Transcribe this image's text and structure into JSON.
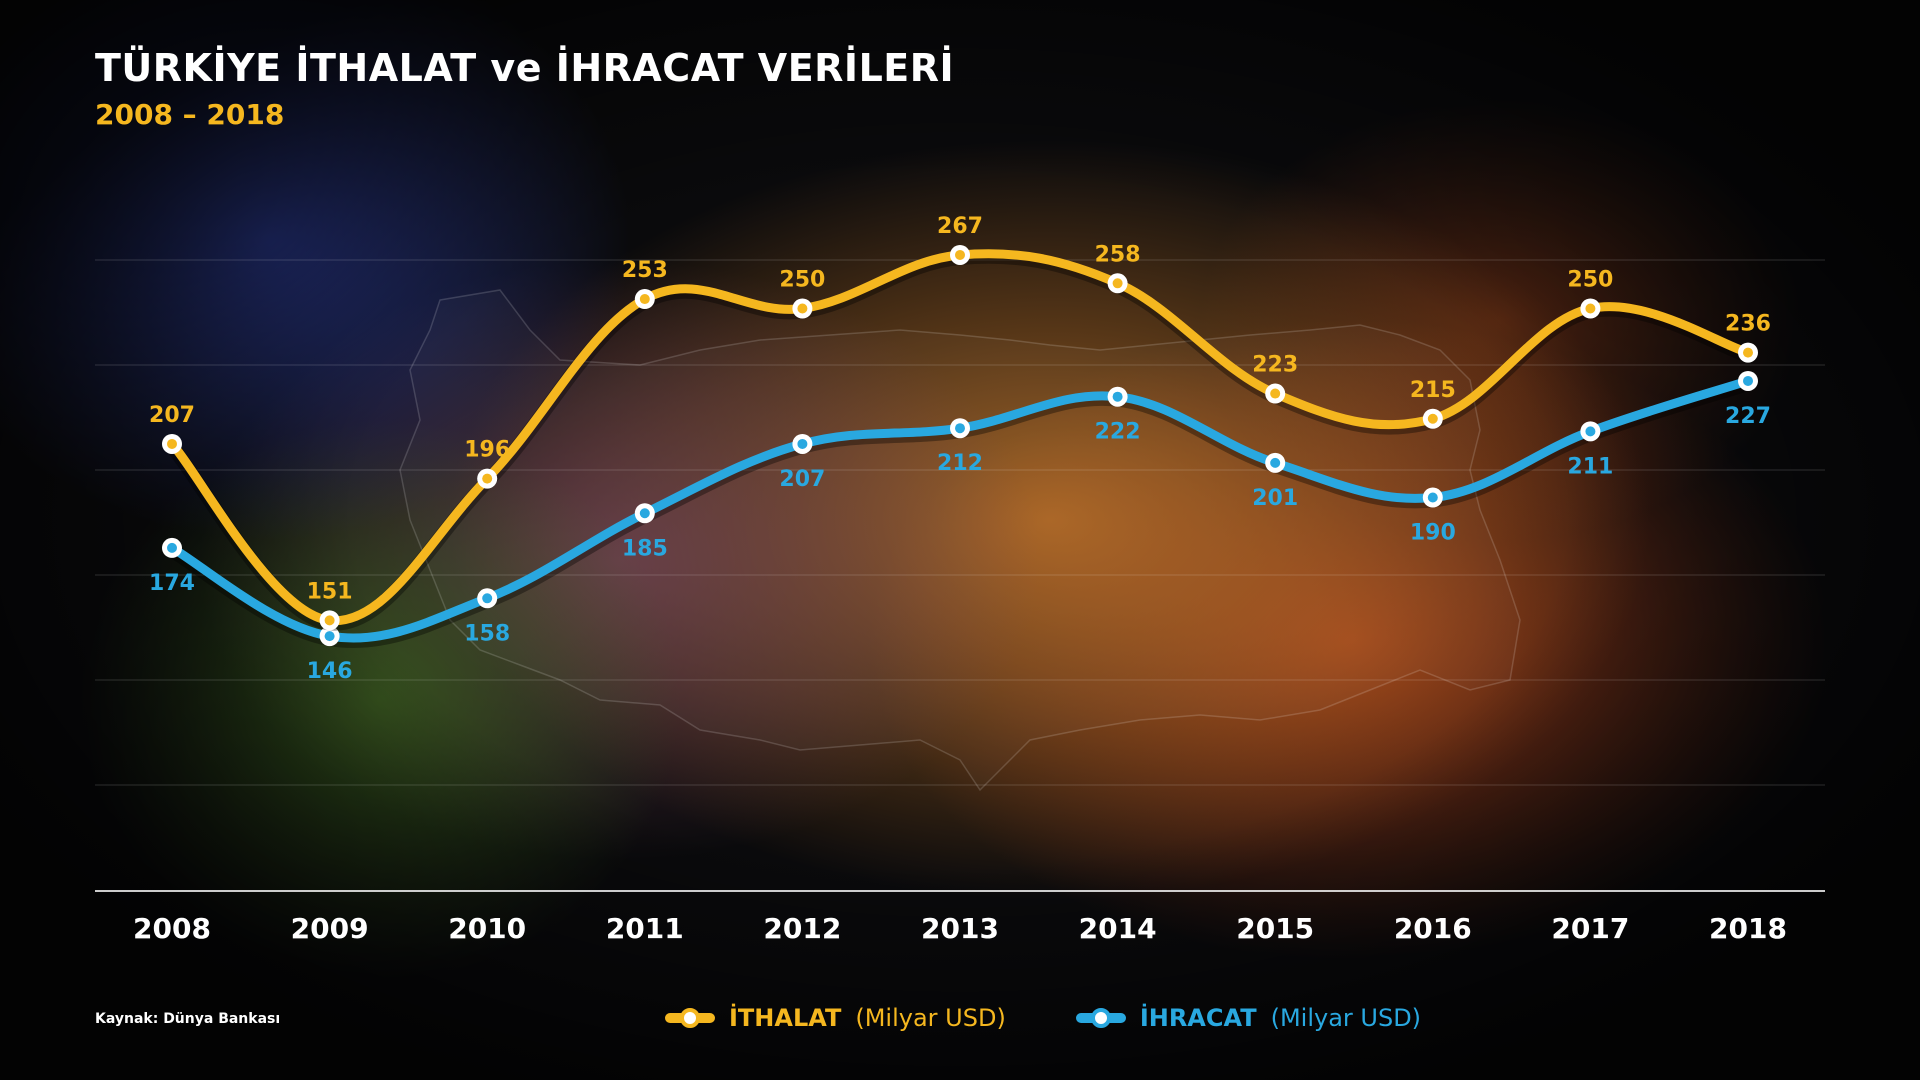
{
  "header": {
    "title": "TÜRKİYE İTHALAT ve İHRACAT VERİLERİ",
    "subtitle": "2008 – 2018"
  },
  "source": "Kaynak: Dünya Bankası",
  "legend": [
    {
      "name": "İTHALAT",
      "unit": "(Milyar USD)",
      "color": "#f5b71f"
    },
    {
      "name": "İHRACAT",
      "unit": "(Milyar USD)",
      "color": "#29a8e0"
    }
  ],
  "chart_data": {
    "type": "line",
    "title": "TÜRKİYE İTHALAT ve İHRACAT VERİLERİ",
    "subtitle": "2008 – 2018",
    "categories": [
      "2008",
      "2009",
      "2010",
      "2011",
      "2012",
      "2013",
      "2014",
      "2015",
      "2016",
      "2017",
      "2018"
    ],
    "series": [
      {
        "name": "İTHALAT (Milyar USD)",
        "color": "#f5b71f",
        "values": [
          207,
          151,
          196,
          253,
          250,
          267,
          258,
          223,
          215,
          250,
          236
        ]
      },
      {
        "name": "İHRACAT (Milyar USD)",
        "color": "#29a8e0",
        "values": [
          174,
          146,
          158,
          185,
          207,
          212,
          222,
          201,
          190,
          211,
          227
        ]
      }
    ],
    "grid": true,
    "legend_position": "bottom",
    "background_motif": "Turkey map outline"
  }
}
